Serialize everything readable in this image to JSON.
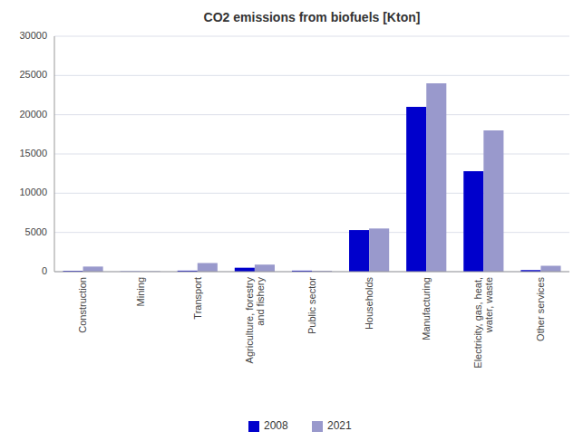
{
  "chart_data": {
    "type": "bar",
    "title": "CO2 emissions from biofuels [Kton]",
    "categories": [
      "Construction",
      "Mining",
      "Transport",
      "Agriculture, forestry\nand fishery",
      "Public sector",
      "Households",
      "Manufacturing",
      "Electricity, gas, heat,\nwater, waste",
      "Other services"
    ],
    "series": [
      {
        "name": "2008",
        "color": "#0000CC",
        "values": [
          100,
          30,
          130,
          500,
          130,
          5300,
          21000,
          12800,
          200
        ]
      },
      {
        "name": "2021",
        "color": "#9999CC",
        "values": [
          650,
          60,
          1100,
          900,
          120,
          5500,
          24000,
          18000,
          750
        ]
      }
    ],
    "ylim": [
      0,
      30000
    ],
    "yticks": [
      0,
      5000,
      10000,
      15000,
      20000,
      25000,
      30000
    ],
    "grid": true,
    "legend": "bottom"
  }
}
